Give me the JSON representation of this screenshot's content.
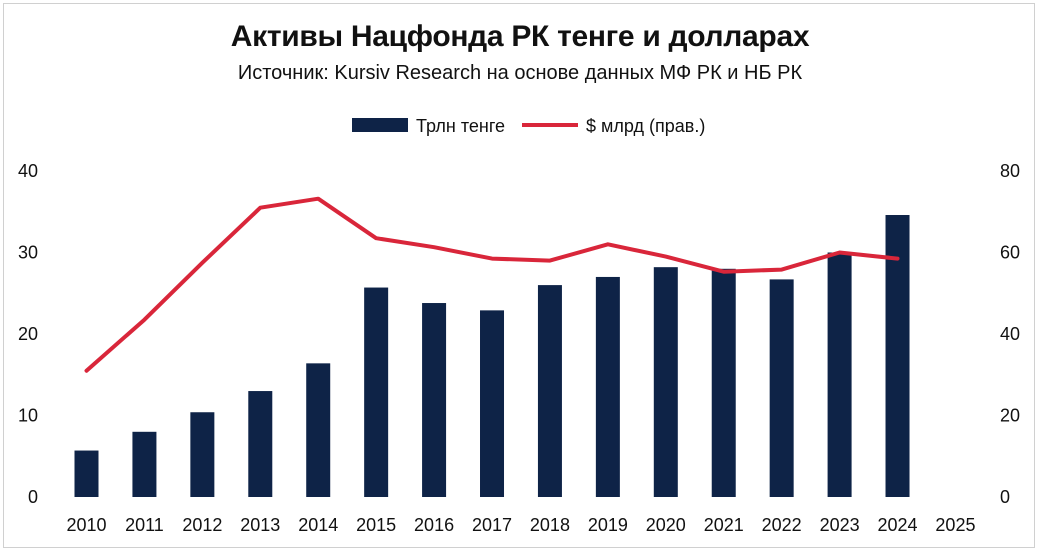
{
  "title": "Активы Нацфонда РК тенге и долларах",
  "subtitle": "Источник: Kursiv Research на основе данных МФ РК и НБ РК",
  "colors": {
    "bars": "#0e2347",
    "line": "#d9263a",
    "text": "#111111"
  },
  "chart_data": {
    "type": "bar",
    "categories": [
      "2010",
      "2011",
      "2012",
      "2013",
      "2014",
      "2015",
      "2016",
      "2017",
      "2018",
      "2019",
      "2020",
      "2021",
      "2022",
      "2023",
      "2024",
      "2025"
    ],
    "series": [
      {
        "name": "Трлн тенге",
        "type": "bar",
        "axis": "left",
        "values": [
          5.7,
          8.0,
          10.4,
          13.0,
          16.4,
          25.7,
          23.8,
          22.9,
          26.0,
          27.0,
          28.2,
          28.0,
          26.7,
          30.0,
          34.6,
          null
        ]
      },
      {
        "name": "$ млрд (прав.)",
        "type": "line",
        "axis": "right",
        "values": [
          31.0,
          43.5,
          57.5,
          71.0,
          73.2,
          63.5,
          61.3,
          58.5,
          58.0,
          62.0,
          59.0,
          55.3,
          55.8,
          60.0,
          58.5,
          null
        ]
      }
    ],
    "y_left": {
      "ylim": [
        0,
        40
      ],
      "ticks": [
        "0",
        "10",
        "20",
        "30",
        "40"
      ]
    },
    "y_right": {
      "ylim": [
        0,
        80
      ],
      "ticks": [
        "0",
        "20",
        "40",
        "60",
        "80"
      ]
    },
    "grid": false,
    "legend_position": "top-center"
  }
}
